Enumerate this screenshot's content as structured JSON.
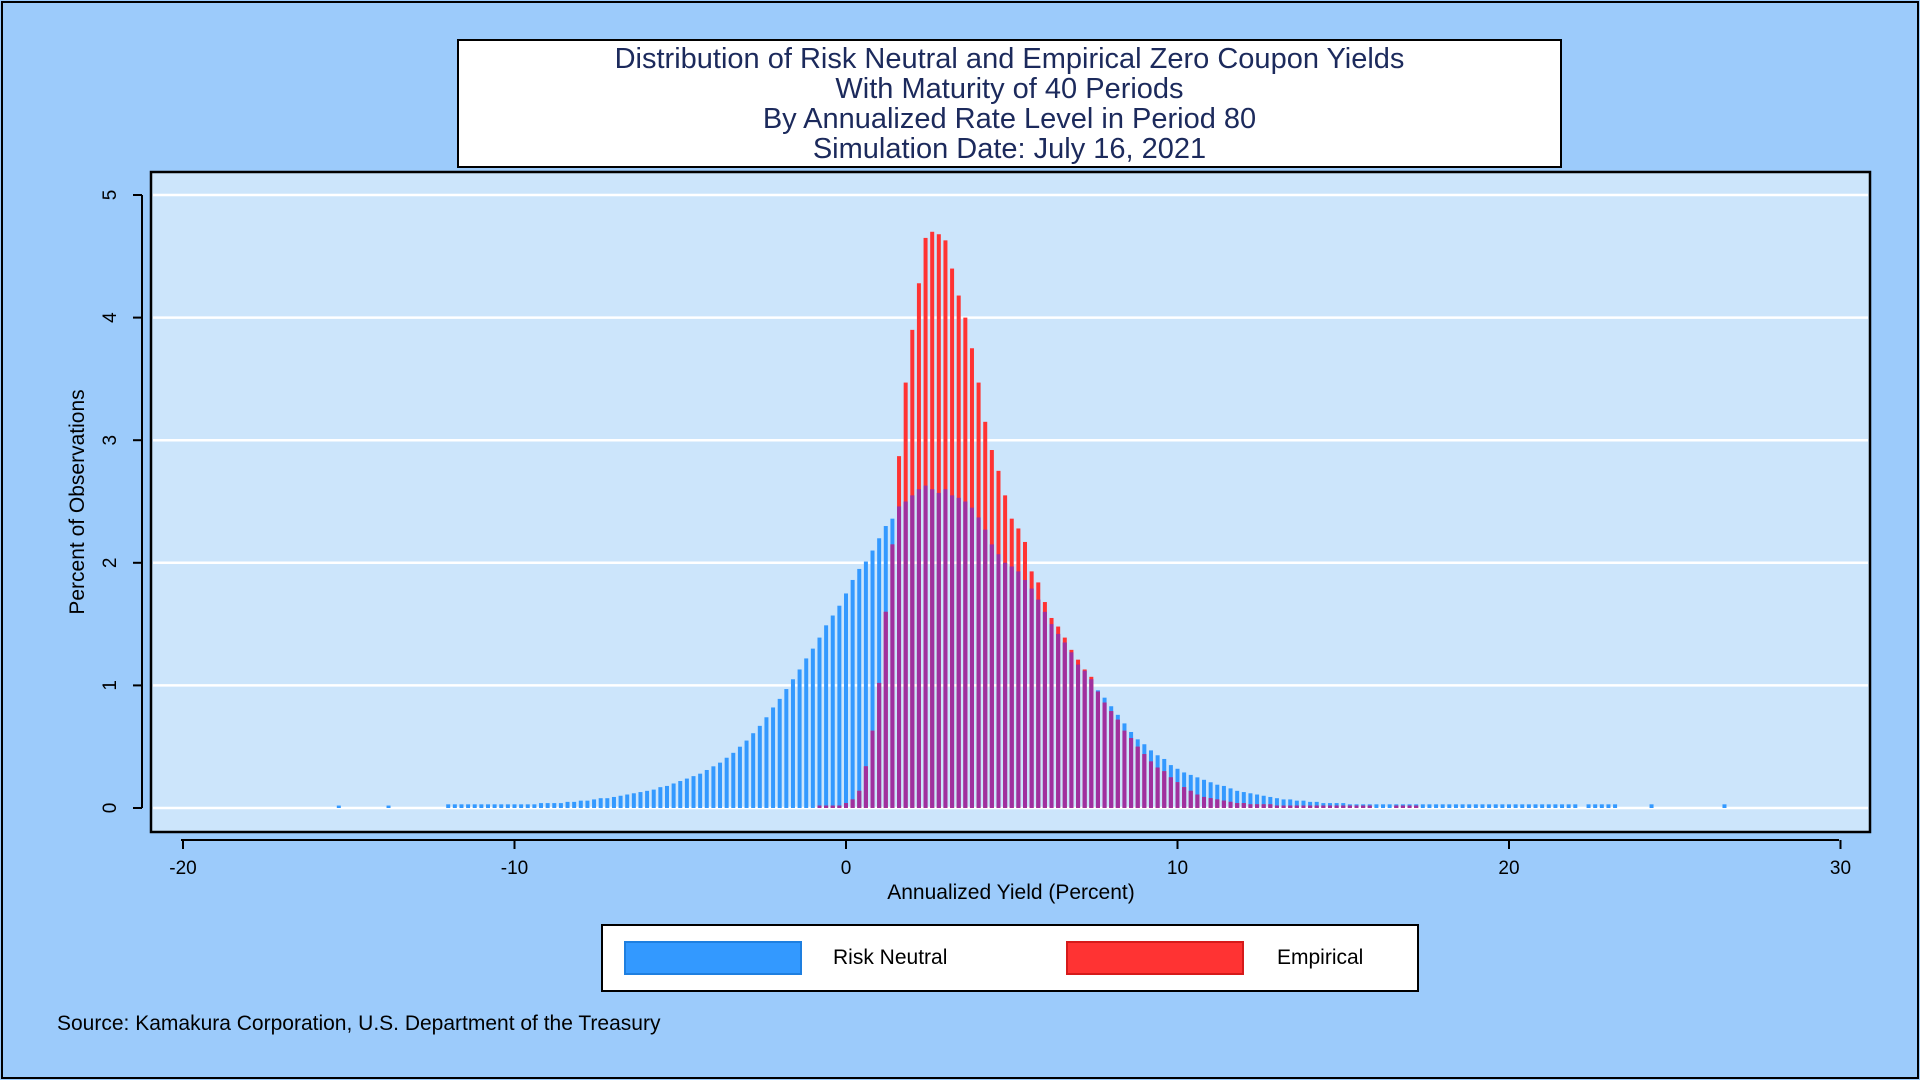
{
  "title_lines": [
    "Distribution of Risk Neutral and Empirical Zero Coupon Yields",
    "With Maturity of 40 Periods",
    "By Annualized Rate Level in Period 80",
    "Simulation Date: July 16, 2021"
  ],
  "legend": {
    "risk_neutral": "Risk Neutral",
    "empirical": "Empirical"
  },
  "source": "Source: Kamakura Corporation, U.S. Department of the Treasury",
  "colors": {
    "background": "#9ccbfb",
    "plot_area": "#cce5fb",
    "risk_neutral": "#3399ff",
    "empirical": "#ff3333",
    "overlap": "#a0309f"
  },
  "chart_data": {
    "type": "bar",
    "xlabel": "Annualized Yield (Percent)",
    "ylabel": "Percent of Observations",
    "xlim": [
      -21,
      31
    ],
    "ylim": [
      -0.2,
      5.2
    ],
    "xticks": [
      -20,
      -10,
      0,
      10,
      20,
      30
    ],
    "xtick_labels": [
      "-20",
      "-10",
      "0",
      "10",
      "20",
      "30"
    ],
    "yticks": [
      0,
      1,
      2,
      3,
      4,
      5
    ],
    "ytick_labels": [
      "0",
      "1",
      "2",
      "3",
      "4",
      "5"
    ],
    "grid": true,
    "legend_position": "bottom",
    "series": [
      {
        "name": "Risk Neutral",
        "bin_width": 0.2,
        "x": [
          -15.3,
          -13.8,
          -12.0,
          -11.8,
          -11.6,
          -11.4,
          -11.2,
          -11.0,
          -10.8,
          -10.6,
          -10.4,
          -10.2,
          -10.0,
          -9.8,
          -9.6,
          -9.4,
          -9.2,
          -9.0,
          -8.8,
          -8.6,
          -8.4,
          -8.2,
          -8.0,
          -7.8,
          -7.6,
          -7.4,
          -7.2,
          -7.0,
          -6.8,
          -6.6,
          -6.4,
          -6.2,
          -6.0,
          -5.8,
          -5.6,
          -5.4,
          -5.2,
          -5.0,
          -4.8,
          -4.6,
          -4.4,
          -4.2,
          -4.0,
          -3.8,
          -3.6,
          -3.4,
          -3.2,
          -3.0,
          -2.8,
          -2.6,
          -2.4,
          -2.2,
          -2.0,
          -1.8,
          -1.6,
          -1.4,
          -1.2,
          -1.0,
          -0.8,
          -0.6,
          -0.4,
          -0.2,
          0.0,
          0.2,
          0.4,
          0.6,
          0.8,
          1.0,
          1.2,
          1.4,
          1.6,
          1.8,
          2.0,
          2.2,
          2.4,
          2.6,
          2.8,
          3.0,
          3.2,
          3.4,
          3.6,
          3.8,
          4.0,
          4.2,
          4.4,
          4.6,
          4.8,
          5.0,
          5.2,
          5.4,
          5.6,
          5.8,
          6.0,
          6.2,
          6.4,
          6.6,
          6.8,
          7.0,
          7.2,
          7.4,
          7.6,
          7.8,
          8.0,
          8.2,
          8.4,
          8.6,
          8.8,
          9.0,
          9.2,
          9.4,
          9.6,
          9.8,
          10.0,
          10.2,
          10.4,
          10.6,
          10.8,
          11.0,
          11.2,
          11.4,
          11.6,
          11.8,
          12.0,
          12.2,
          12.4,
          12.6,
          12.8,
          13.0,
          13.2,
          13.4,
          13.6,
          13.8,
          14.0,
          14.2,
          14.4,
          14.6,
          14.8,
          15.0,
          15.2,
          15.4,
          15.6,
          15.8,
          16.0,
          16.2,
          16.4,
          16.6,
          16.8,
          17.0,
          17.2,
          17.4,
          17.6,
          17.8,
          18.0,
          18.2,
          18.4,
          18.6,
          18.8,
          19.0,
          19.2,
          19.4,
          19.6,
          19.8,
          20.0,
          20.2,
          20.4,
          20.6,
          20.8,
          21.0,
          21.2,
          21.4,
          21.6,
          21.8,
          22.0,
          22.4,
          22.6,
          22.8,
          23.0,
          23.2,
          24.3,
          26.5
        ],
        "values": [
          0.02,
          0.02,
          0.03,
          0.03,
          0.03,
          0.03,
          0.03,
          0.03,
          0.03,
          0.03,
          0.03,
          0.03,
          0.03,
          0.03,
          0.03,
          0.03,
          0.04,
          0.04,
          0.04,
          0.04,
          0.05,
          0.05,
          0.06,
          0.06,
          0.07,
          0.08,
          0.08,
          0.09,
          0.1,
          0.11,
          0.12,
          0.13,
          0.14,
          0.15,
          0.17,
          0.18,
          0.2,
          0.22,
          0.24,
          0.26,
          0.28,
          0.31,
          0.34,
          0.37,
          0.41,
          0.45,
          0.5,
          0.55,
          0.61,
          0.67,
          0.74,
          0.82,
          0.89,
          0.97,
          1.05,
          1.13,
          1.22,
          1.3,
          1.39,
          1.49,
          1.57,
          1.65,
          1.75,
          1.86,
          1.95,
          2.01,
          2.1,
          2.2,
          2.3,
          2.36,
          2.46,
          2.5,
          2.55,
          2.6,
          2.63,
          2.6,
          2.57,
          2.6,
          2.55,
          2.53,
          2.5,
          2.45,
          2.37,
          2.27,
          2.15,
          2.07,
          2.0,
          1.97,
          1.93,
          1.86,
          1.79,
          1.7,
          1.6,
          1.5,
          1.42,
          1.35,
          1.27,
          1.17,
          1.12,
          1.05,
          0.96,
          0.9,
          0.83,
          0.76,
          0.69,
          0.62,
          0.56,
          0.52,
          0.47,
          0.43,
          0.4,
          0.35,
          0.32,
          0.29,
          0.27,
          0.25,
          0.23,
          0.21,
          0.19,
          0.18,
          0.16,
          0.14,
          0.13,
          0.12,
          0.11,
          0.1,
          0.09,
          0.08,
          0.07,
          0.07,
          0.06,
          0.06,
          0.05,
          0.05,
          0.04,
          0.04,
          0.04,
          0.04,
          0.03,
          0.03,
          0.03,
          0.03,
          0.03,
          0.03,
          0.03,
          0.03,
          0.03,
          0.03,
          0.03,
          0.03,
          0.03,
          0.03,
          0.03,
          0.03,
          0.03,
          0.03,
          0.03,
          0.03,
          0.03,
          0.03,
          0.03,
          0.03,
          0.03,
          0.03,
          0.03,
          0.03,
          0.03,
          0.03,
          0.03,
          0.03,
          0.03,
          0.03,
          0.03,
          0.03,
          0.03,
          0.03,
          0.03,
          0.03,
          0.03,
          0.03
        ]
      },
      {
        "name": "Empirical",
        "bin_width": 0.2,
        "x": [
          -0.8,
          -0.6,
          -0.4,
          -0.2,
          0.0,
          0.2,
          0.4,
          0.6,
          0.8,
          1.0,
          1.2,
          1.4,
          1.6,
          1.8,
          2.0,
          2.2,
          2.4,
          2.6,
          2.8,
          3.0,
          3.2,
          3.4,
          3.6,
          3.8,
          4.0,
          4.2,
          4.4,
          4.6,
          4.8,
          5.0,
          5.2,
          5.4,
          5.6,
          5.8,
          6.0,
          6.2,
          6.4,
          6.6,
          6.8,
          7.0,
          7.2,
          7.4,
          7.6,
          7.8,
          8.0,
          8.2,
          8.4,
          8.6,
          8.8,
          9.0,
          9.2,
          9.4,
          9.6,
          9.8,
          10.0,
          10.2,
          10.4,
          10.6,
          10.8,
          11.0,
          11.2,
          11.4,
          11.6,
          11.8,
          12.0,
          12.2,
          12.4,
          12.6,
          12.8,
          13.0,
          13.2,
          13.4,
          13.6,
          13.8,
          14.0,
          14.2,
          14.4,
          14.6,
          14.8,
          15.0,
          15.2,
          15.4,
          15.6,
          15.8,
          16.6,
          16.8,
          17.0,
          17.2
        ],
        "values": [
          0.02,
          0.02,
          0.02,
          0.02,
          0.04,
          0.07,
          0.14,
          0.34,
          0.63,
          1.02,
          1.6,
          2.15,
          2.87,
          3.47,
          3.9,
          4.28,
          4.65,
          4.7,
          4.68,
          4.63,
          4.4,
          4.18,
          4.0,
          3.75,
          3.47,
          3.15,
          2.92,
          2.75,
          2.55,
          2.36,
          2.28,
          2.17,
          1.93,
          1.84,
          1.68,
          1.55,
          1.48,
          1.39,
          1.29,
          1.21,
          1.13,
          1.07,
          0.95,
          0.86,
          0.79,
          0.72,
          0.63,
          0.57,
          0.5,
          0.44,
          0.38,
          0.33,
          0.3,
          0.25,
          0.21,
          0.17,
          0.14,
          0.11,
          0.09,
          0.08,
          0.07,
          0.06,
          0.05,
          0.04,
          0.04,
          0.03,
          0.03,
          0.03,
          0.03,
          0.02,
          0.02,
          0.02,
          0.02,
          0.02,
          0.02,
          0.02,
          0.02,
          0.02,
          0.02,
          0.02,
          0.02,
          0.02,
          0.02,
          0.02,
          0.02,
          0.02,
          0.02,
          0.02
        ]
      }
    ]
  }
}
